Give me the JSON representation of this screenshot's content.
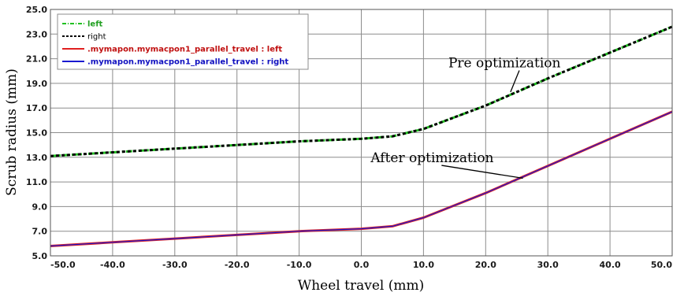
{
  "chart_data": {
    "type": "line",
    "title": "",
    "xlabel": "Wheel travel (mm)",
    "ylabel": "Scrub radius (mm)",
    "xlim": [
      -50,
      50
    ],
    "ylim": [
      5,
      25
    ],
    "x_ticks": [
      -50,
      -40,
      -30,
      -20,
      -10,
      0,
      10,
      20,
      30,
      40,
      50
    ],
    "y_ticks": [
      5,
      7,
      9,
      11,
      13,
      15,
      17,
      19,
      21,
      23,
      25
    ],
    "grid": true,
    "legend_position": "top-left",
    "series": [
      {
        "name": "left",
        "color": "#22c022",
        "style": "dash-dot",
        "x": [
          -50,
          -40,
          -30,
          -20,
          -10,
          0,
          5,
          10,
          20,
          30,
          40,
          50
        ],
        "y": [
          13.1,
          13.4,
          13.7,
          14.0,
          14.3,
          14.5,
          14.7,
          15.3,
          17.2,
          19.4,
          21.5,
          23.6
        ]
      },
      {
        "name": "right",
        "color": "#000000",
        "style": "dashed",
        "x": [
          -50,
          -40,
          -30,
          -20,
          -10,
          0,
          5,
          10,
          20,
          30,
          40,
          50
        ],
        "y": [
          13.1,
          13.4,
          13.7,
          14.0,
          14.3,
          14.5,
          14.7,
          15.3,
          17.2,
          19.4,
          21.5,
          23.6
        ]
      },
      {
        "name": ".mymapon.mymacpon1_parallel_travel : left",
        "color": "#e02020",
        "style": "solid",
        "x": [
          -50,
          -40,
          -30,
          -20,
          -10,
          0,
          5,
          10,
          20,
          30,
          40,
          50
        ],
        "y": [
          5.8,
          6.1,
          6.4,
          6.7,
          7.0,
          7.2,
          7.4,
          8.1,
          10.1,
          12.3,
          14.5,
          16.7
        ]
      },
      {
        "name": ".mymapon.mymacpon1_parallel_travel : right",
        "color": "#1a1ad0",
        "style": "solid",
        "x": [
          -50,
          -40,
          -30,
          -20,
          -10,
          0,
          5,
          10,
          20,
          30,
          40,
          50
        ],
        "y": [
          5.8,
          6.1,
          6.4,
          6.7,
          7.0,
          7.2,
          7.4,
          8.1,
          10.1,
          12.3,
          14.5,
          16.7
        ]
      }
    ],
    "annotations": [
      {
        "text": "Pre optimization",
        "text_x": 14,
        "text_y": 20.3,
        "arrow_to_x": 24,
        "arrow_to_y": 18.3
      },
      {
        "text": "After optimization",
        "text_x": 1.5,
        "text_y": 12.6,
        "arrow_to_x": 26,
        "arrow_to_y": 11.3
      }
    ]
  }
}
